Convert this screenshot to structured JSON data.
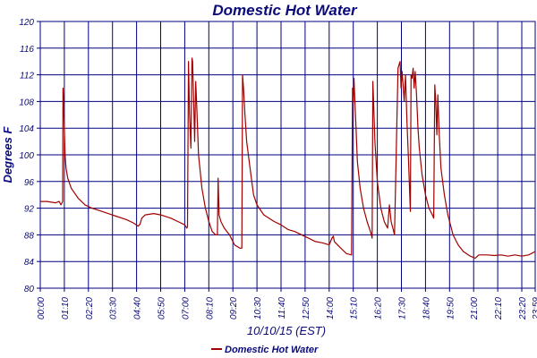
{
  "chart_data": {
    "type": "line",
    "title": "Domestic Hot Water",
    "xlabel": "10/10/15 (EST)",
    "ylabel": "Degrees F",
    "ylim": [
      80,
      120
    ],
    "y_ticks": [
      "80",
      "84",
      "88",
      "92",
      "96",
      "100",
      "104",
      "108",
      "112",
      "116",
      "120"
    ],
    "x_ticks": [
      "00:00",
      "01:10",
      "02:20",
      "03:30",
      "04:40",
      "05:50",
      "07:00",
      "08:10",
      "09:20",
      "10:30",
      "11:40",
      "12:50",
      "14:00",
      "15:10",
      "16:20",
      "17:30",
      "18:40",
      "19:50",
      "21:00",
      "22:10",
      "23:20",
      "23:59"
    ],
    "grid": true,
    "legend_position": "bottom-left",
    "colors": {
      "series": "#a00000",
      "grid": "#000080",
      "text": "#0a0a7a",
      "background": "#ffffff"
    },
    "series": [
      {
        "name": "Domestic Hot Water",
        "points": [
          [
            0,
            93.0
          ],
          [
            20,
            93.0
          ],
          [
            45,
            92.8
          ],
          [
            55,
            93.0
          ],
          [
            60,
            92.5
          ],
          [
            65,
            93.0
          ],
          [
            66,
            110.0
          ],
          [
            68,
            108.0
          ],
          [
            72,
            100.0
          ],
          [
            75,
            98.0
          ],
          [
            80,
            96.5
          ],
          [
            90,
            95.0
          ],
          [
            110,
            93.5
          ],
          [
            130,
            92.5
          ],
          [
            150,
            92.0
          ],
          [
            180,
            91.5
          ],
          [
            220,
            90.8
          ],
          [
            250,
            90.3
          ],
          [
            270,
            89.8
          ],
          [
            285,
            89.3
          ],
          [
            290,
            89.6
          ],
          [
            295,
            90.5
          ],
          [
            305,
            91.0
          ],
          [
            330,
            91.2
          ],
          [
            350,
            91.0
          ],
          [
            380,
            90.5
          ],
          [
            400,
            90.0
          ],
          [
            420,
            89.5
          ],
          [
            426,
            89.0
          ],
          [
            428,
            89.2
          ],
          [
            431,
            114.0
          ],
          [
            434,
            106.0
          ],
          [
            438,
            101.0
          ],
          [
            441,
            114.5
          ],
          [
            443,
            114.0
          ],
          [
            446,
            108.0
          ],
          [
            449,
            102.0
          ],
          [
            452,
            111.0
          ],
          [
            456,
            106.0
          ],
          [
            460,
            100.0
          ],
          [
            470,
            95.0
          ],
          [
            480,
            92.0
          ],
          [
            490,
            90.0
          ],
          [
            500,
            88.5
          ],
          [
            510,
            88.0
          ],
          [
            515,
            88.0
          ],
          [
            517,
            96.5
          ],
          [
            520,
            91.0
          ],
          [
            525,
            90.0
          ],
          [
            535,
            89.0
          ],
          [
            550,
            88.0
          ],
          [
            565,
            86.5
          ],
          [
            580,
            86.0
          ],
          [
            586,
            86.0
          ],
          [
            588,
            112.0
          ],
          [
            591,
            110.0
          ],
          [
            595,
            106.0
          ],
          [
            600,
            102.0
          ],
          [
            610,
            98.0
          ],
          [
            620,
            94.0
          ],
          [
            630,
            92.5
          ],
          [
            650,
            91.0
          ],
          [
            680,
            90.0
          ],
          [
            700,
            89.5
          ],
          [
            720,
            88.8
          ],
          [
            740,
            88.5
          ],
          [
            760,
            88.0
          ],
          [
            780,
            87.5
          ],
          [
            800,
            87.0
          ],
          [
            820,
            86.8
          ],
          [
            840,
            86.5
          ],
          [
            848,
            87.5
          ],
          [
            852,
            87.8
          ],
          [
            855,
            87.0
          ],
          [
            870,
            86.2
          ],
          [
            890,
            85.2
          ],
          [
            905,
            85.0
          ],
          [
            908,
            110.0
          ],
          [
            910,
            108.0
          ],
          [
            912,
            111.5
          ],
          [
            914,
            109.0
          ],
          [
            918,
            104.0
          ],
          [
            922,
            99.0
          ],
          [
            930,
            95.0
          ],
          [
            940,
            92.0
          ],
          [
            950,
            90.0
          ],
          [
            960,
            88.5
          ],
          [
            965,
            87.5
          ],
          [
            967,
            111.0
          ],
          [
            969,
            108.0
          ],
          [
            973,
            102.0
          ],
          [
            980,
            96.0
          ],
          [
            990,
            92.0
          ],
          [
            1000,
            90.0
          ],
          [
            1010,
            89.0
          ],
          [
            1015,
            92.5
          ],
          [
            1020,
            90.0
          ],
          [
            1025,
            89.0
          ],
          [
            1030,
            88.0
          ],
          [
            1040,
            113.0
          ],
          [
            1043,
            113.5
          ],
          [
            1046,
            114.0
          ],
          [
            1049,
            110.0
          ],
          [
            1052,
            112.5
          ],
          [
            1055,
            110.5
          ],
          [
            1058,
            108.0
          ],
          [
            1062,
            112.0
          ],
          [
            1066,
            105.0
          ],
          [
            1070,
            100.0
          ],
          [
            1073,
            96.0
          ],
          [
            1076,
            91.5
          ],
          [
            1078,
            112.0
          ],
          [
            1081,
            111.5
          ],
          [
            1084,
            113.0
          ],
          [
            1087,
            110.0
          ],
          [
            1090,
            112.5
          ],
          [
            1094,
            109.0
          ],
          [
            1098,
            104.0
          ],
          [
            1102,
            101.0
          ],
          [
            1110,
            97.0
          ],
          [
            1120,
            94.0
          ],
          [
            1130,
            92.0
          ],
          [
            1140,
            91.0
          ],
          [
            1144,
            90.5
          ],
          [
            1147,
            110.5
          ],
          [
            1150,
            108.0
          ],
          [
            1153,
            103.0
          ],
          [
            1156,
            109.0
          ],
          [
            1160,
            103.0
          ],
          [
            1165,
            98.0
          ],
          [
            1175,
            94.0
          ],
          [
            1185,
            91.0
          ],
          [
            1200,
            88.0
          ],
          [
            1215,
            86.5
          ],
          [
            1230,
            85.5
          ],
          [
            1250,
            84.8
          ],
          [
            1265,
            84.5
          ],
          [
            1275,
            85.0
          ],
          [
            1300,
            85.0
          ],
          [
            1320,
            84.9
          ],
          [
            1340,
            85.0
          ],
          [
            1360,
            84.8
          ],
          [
            1380,
            85.0
          ],
          [
            1400,
            84.8
          ],
          [
            1420,
            85.0
          ],
          [
            1439,
            85.5
          ]
        ]
      }
    ],
    "legend": {
      "entries": [
        "Domestic Hot Water"
      ]
    }
  }
}
